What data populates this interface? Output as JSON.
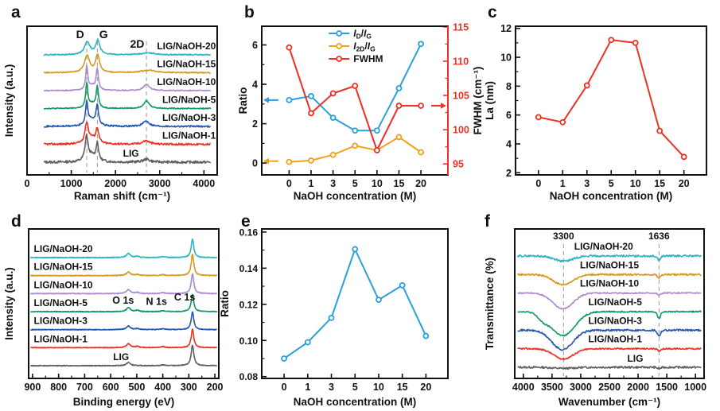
{
  "figure": {
    "background": "#ffffff",
    "accent_red": "#ee3124",
    "accent_blue": "#2b9fdc",
    "accent_orange": "#f0a11e"
  },
  "chart_data": [
    {
      "panel": "a",
      "type": "line",
      "subtype": "spectra",
      "xlabel": "Raman shift (cm⁻¹)",
      "ylabel": "Intensity (a.u.)",
      "xlim": [
        0,
        4300
      ],
      "xticks": [
        0,
        1000,
        2000,
        3000,
        4000
      ],
      "xtick_labels": [
        "0",
        "1000",
        "2000",
        "3000",
        "4000"
      ],
      "guide_lines": [
        1350,
        1590,
        2700
      ],
      "annotations": [
        {
          "text": "D",
          "x": 1200,
          "dy": 15,
          "fs": 14
        },
        {
          "text": "G",
          "x": 1730,
          "dy": 15,
          "fs": 14
        },
        {
          "text": "2D",
          "x": 2490,
          "dy": 27,
          "fs": 14
        }
      ],
      "curve_span": [
        380,
        4150
      ],
      "peak_shape": "lorentz",
      "samples": 300,
      "series": [
        {
          "name": "LIG",
          "color": "#5f5f5f",
          "noise": 0.07,
          "peaks": [
            [
              1345,
              40,
              1.35
            ],
            [
              1588,
              33,
              1.0
            ],
            [
              1455,
              110,
              0.33
            ],
            [
              2700,
              95,
              0.16
            ]
          ],
          "label": {
            "x": 2350,
            "anchor": "middle",
            "dy": 7
          }
        },
        {
          "name": "LIG/NaOH-1",
          "color": "#ee3124",
          "noise": 0.055,
          "peaks": [
            [
              1348,
              45,
              1.1
            ],
            [
              1588,
              38,
              0.8
            ],
            [
              1460,
              110,
              0.3
            ],
            [
              2690,
              95,
              0.2
            ]
          ],
          "label": {
            "x": 4270,
            "anchor": "end",
            "dy": 7
          }
        },
        {
          "name": "LIG/NaOH-3",
          "color": "#2257b2",
          "noise": 0.045,
          "peaks": [
            [
              1350,
              33,
              1.27
            ],
            [
              1588,
              33,
              1.08
            ],
            [
              1470,
              100,
              0.35
            ],
            [
              2695,
              85,
              0.3
            ]
          ],
          "label": {
            "x": 4270,
            "anchor": "end",
            "dy": 7
          }
        },
        {
          "name": "LIG/NaOH-5",
          "color": "#12995f",
          "noise": 0.03,
          "peaks": [
            [
              1350,
              28,
              1.38
            ],
            [
              1588,
              30,
              1.2
            ],
            [
              1470,
              90,
              0.25
            ],
            [
              2700,
              80,
              0.42
            ]
          ],
          "label": {
            "x": 4270,
            "anchor": "end",
            "dy": 7
          }
        },
        {
          "name": "LIG/NaOH-10",
          "color": "#a98bcb",
          "noise": 0.03,
          "peaks": [
            [
              1350,
              28,
              1.3
            ],
            [
              1588,
              30,
              1.16
            ],
            [
              1470,
              90,
              0.25
            ],
            [
              2700,
              80,
              0.36
            ]
          ],
          "label": {
            "x": 4270,
            "anchor": "end",
            "dy": 7
          }
        },
        {
          "name": "LIG/NaOH-15",
          "color": "#d7991d",
          "noise": 0.03,
          "peaks": [
            [
              1358,
              70,
              0.95
            ],
            [
              1595,
              52,
              1.0
            ],
            [
              2750,
              200,
              0.14
            ]
          ],
          "label": {
            "x": 4270,
            "anchor": "end",
            "dy": 7
          }
        },
        {
          "name": "LIG/NaOH-20",
          "color": "#2ab3c4",
          "noise": 0.03,
          "peaks": [
            [
              1362,
              75,
              0.7
            ],
            [
              1600,
              55,
              0.8
            ],
            [
              2750,
              200,
              0.1
            ]
          ],
          "label": {
            "x": 4270,
            "anchor": "end",
            "dy": 7
          }
        }
      ]
    },
    {
      "panel": "b",
      "type": "line",
      "subtype": "xy",
      "xlabel": "NaOH concentration (M)",
      "ylabel": "Ratio",
      "ylabel_right": "FWHM (cm⁻¹)",
      "categories": [
        "0",
        "1",
        "3",
        "5",
        "10",
        "15",
        "20"
      ],
      "ylim": [
        -0.6,
        6.95
      ],
      "yticks": [
        0,
        2,
        4,
        6
      ],
      "ytick_labels": [
        "0",
        "2",
        "4",
        "6"
      ],
      "ylim_right": [
        93.4,
        115.1
      ],
      "yticks_right": [
        95,
        100,
        105,
        110,
        115
      ],
      "ytick_labels_right": [
        "95",
        "100",
        "105",
        "110",
        "115"
      ],
      "right_axis_color": "#ee3124",
      "series": [
        {
          "name": "ID/IG",
          "axis": "left",
          "color": "#2b9fdc",
          "values": [
            3.2,
            3.4,
            2.3,
            1.65,
            1.65,
            3.8,
            6.05
          ]
        },
        {
          "name": "I2D/IG",
          "axis": "left",
          "color": "#f0a11e",
          "values": [
            0.06,
            0.13,
            0.42,
            0.88,
            0.65,
            1.32,
            0.55
          ]
        },
        {
          "name": "FWHM",
          "axis": "right",
          "color": "#ee3124",
          "values": [
            112,
            102.4,
            105.3,
            106.4,
            97,
            103.5,
            103.5
          ]
        }
      ],
      "legend": [
        {
          "color": "#2b9fdc",
          "plain": "ID/IG",
          "parts": [
            [
              "I",
              "i"
            ],
            [
              "D",
              "s"
            ],
            [
              "/",
              ""
            ],
            [
              "I",
              "i"
            ],
            [
              "G",
              "s"
            ]
          ]
        },
        {
          "color": "#f0a11e",
          "plain": "I2D/IG",
          "parts": [
            [
              "I",
              "i"
            ],
            [
              "2D",
              "s"
            ],
            [
              "/",
              ""
            ],
            [
              "I",
              "i"
            ],
            [
              "G",
              "s"
            ]
          ]
        },
        {
          "color": "#ee3124",
          "plain": "FWHM",
          "parts": [
            [
              "FWHM",
              ""
            ]
          ]
        }
      ],
      "arrows": [
        {
          "axis": "left",
          "y": 3.2,
          "dir": "left",
          "color": "#2b9fdc"
        },
        {
          "axis": "left",
          "y": 0.1,
          "dir": "left",
          "color": "#f0a11e"
        },
        {
          "axis": "right",
          "y": 103.5,
          "dir": "right",
          "color": "#ee3124"
        }
      ]
    },
    {
      "panel": "c",
      "type": "line",
      "subtype": "xy",
      "xlabel": "NaOH concentration (M)",
      "ylabel": "La (nm)",
      "categories": [
        "0",
        "1",
        "3",
        "5",
        "10",
        "15",
        "20"
      ],
      "ylim": [
        1.85,
        12.15
      ],
      "yticks": [
        2,
        4,
        6,
        8,
        10,
        12
      ],
      "ytick_labels": [
        "2",
        "4",
        "6",
        "8",
        "10",
        "12"
      ],
      "series": [
        {
          "name": "La",
          "axis": "left",
          "color": "#ee3124",
          "values": [
            5.85,
            5.5,
            8.05,
            11.2,
            11.0,
            4.9,
            3.1
          ]
        }
      ]
    },
    {
      "panel": "d",
      "type": "line",
      "subtype": "spectra",
      "xlabel": "Binding energy (eV)",
      "ylabel": "Intensity (a.u.)",
      "xlim": [
        915,
        185
      ],
      "xticks": [
        900,
        800,
        700,
        600,
        500,
        400,
        300,
        200
      ],
      "xtick_labels": [
        "900",
        "800",
        "700",
        "600",
        "500",
        "400",
        "300",
        "200"
      ],
      "annotations": [
        {
          "text": "O 1s",
          "x": 552,
          "band": 3.45,
          "fs": 12.5
        },
        {
          "text": "N 1s",
          "x": 424,
          "band": 3.38,
          "fs": 12.5
        },
        {
          "text": "C 1s",
          "x": 316,
          "band": 3.62,
          "fs": 12.5
        }
      ],
      "curve_span": [
        908,
        192
      ],
      "peak_shape": "lorentz",
      "samples": 560,
      "series": [
        {
          "name": "LIG",
          "color": "#5f5f5f",
          "noise": 0.02,
          "peaks": [
            [
              532,
              9,
              0.18
            ],
            [
              400,
              9,
              0.04
            ],
            [
              286,
              6,
              1.15
            ]
          ],
          "label": {
            "x": 560,
            "anchor": "middle",
            "dy": 7
          }
        },
        {
          "name": "LIG/NaOH-1",
          "color": "#ee3124",
          "noise": 0.02,
          "peaks": [
            [
              532,
              9,
              0.22
            ],
            [
              498,
              8,
              0.07
            ],
            [
              400,
              9,
              0.06
            ],
            [
              286,
              6,
              1.02
            ]
          ],
          "label": {
            "x": 895,
            "anchor": "start",
            "dy": 7
          }
        },
        {
          "name": "LIG/NaOH-3",
          "color": "#2257b2",
          "noise": 0.02,
          "peaks": [
            [
              532,
              9,
              0.2
            ],
            [
              498,
              8,
              0.06
            ],
            [
              400,
              9,
              0.05
            ],
            [
              286,
              6,
              0.98
            ]
          ],
          "label": {
            "x": 895,
            "anchor": "start",
            "dy": 7
          }
        },
        {
          "name": "LIG/NaOH-5",
          "color": "#12995f",
          "noise": 0.02,
          "peaks": [
            [
              532,
              9,
              0.22
            ],
            [
              498,
              8,
              0.07
            ],
            [
              400,
              9,
              0.05
            ],
            [
              286,
              6,
              0.95
            ]
          ],
          "label": {
            "x": 895,
            "anchor": "start",
            "dy": 7
          }
        },
        {
          "name": "LIG/NaOH-10",
          "color": "#a98bcb",
          "noise": 0.02,
          "peaks": [
            [
              532,
              9,
              0.22
            ],
            [
              498,
              8,
              0.06
            ],
            [
              400,
              9,
              0.05
            ],
            [
              286,
              6,
              1.1
            ]
          ],
          "label": {
            "x": 895,
            "anchor": "start",
            "dy": 7
          }
        },
        {
          "name": "LIG/NaOH-15",
          "color": "#d7991d",
          "noise": 0.02,
          "peaks": [
            [
              532,
              9,
              0.2
            ],
            [
              498,
              8,
              0.06
            ],
            [
              400,
              9,
              0.05
            ],
            [
              286,
              6,
              1.18
            ]
          ],
          "label": {
            "x": 895,
            "anchor": "start",
            "dy": 7
          }
        },
        {
          "name": "LIG/NaOH-20",
          "color": "#2ab3c4",
          "noise": 0.02,
          "peaks": [
            [
              532,
              9,
              0.22
            ],
            [
              498,
              8,
              0.07
            ],
            [
              400,
              9,
              0.05
            ],
            [
              286,
              6,
              1.02
            ]
          ],
          "label": {
            "x": 895,
            "anchor": "start",
            "dy": 7
          }
        }
      ]
    },
    {
      "panel": "e",
      "type": "line",
      "subtype": "xy",
      "xlabel": "NaOH concentration (M)",
      "ylabel": "Ratio",
      "categories": [
        "0",
        "1",
        "3",
        "5",
        "10",
        "15",
        "20"
      ],
      "ylim": [
        0.079,
        0.1617
      ],
      "yticks": [
        0.08,
        0.1,
        0.12,
        0.14,
        0.16
      ],
      "ytick_labels": [
        "0.08",
        "0.10",
        "0.12",
        "0.14",
        "0.16"
      ],
      "series": [
        {
          "name": "Ratio",
          "axis": "left",
          "color": "#2b9fdc",
          "values": [
            0.09,
            0.099,
            0.1125,
            0.1505,
            0.1225,
            0.1305,
            0.1025
          ]
        }
      ]
    },
    {
      "panel": "f",
      "type": "line",
      "subtype": "spectra",
      "xlabel": "Wavenumber (cm⁻¹)",
      "ylabel": "Transmittance (%)",
      "xlim": [
        4150,
        850
      ],
      "xticks": [
        4000,
        3500,
        3000,
        2500,
        2000,
        1500,
        1000
      ],
      "xtick_labels": [
        "4000",
        "3500",
        "3000",
        "2500",
        "2000",
        "1500",
        "1000"
      ],
      "guide_lines": [
        3300,
        1636
      ],
      "annotations": [
        {
          "text": "3300",
          "x": 3300,
          "dy": 13,
          "fs": 12
        },
        {
          "text": "1636",
          "x": 1636,
          "dy": 13,
          "fs": 12
        }
      ],
      "curve_span": [
        4100,
        900
      ],
      "peak_shape": "gauss",
      "samples": 300,
      "series": [
        {
          "name": "LIG",
          "color": "#5f5f5f",
          "noise": 0.05,
          "peaks": [
            [
              3300,
              250,
              -0.06
            ],
            [
              1636,
              40,
              -0.08
            ]
          ],
          "label": {
            "x": 2050,
            "anchor": "middle",
            "dy": 7
          }
        },
        {
          "name": "LIG/NaOH-1",
          "color": "#ee3124",
          "noise": 0.04,
          "peaks": [
            [
              3300,
              240,
              -0.55
            ],
            [
              1636,
              38,
              -0.12
            ]
          ],
          "label": {
            "x": 2400,
            "anchor": "middle",
            "dy": 8
          }
        },
        {
          "name": "LIG/NaOH-3",
          "color": "#2257b2",
          "noise": 0.05,
          "peaks": [
            [
              3320,
              260,
              -1.05
            ],
            [
              1636,
              38,
              -0.3
            ]
          ],
          "label": {
            "x": 2400,
            "anchor": "middle",
            "dy": 8
          }
        },
        {
          "name": "LIG/NaOH-5",
          "color": "#12995f",
          "noise": 0.035,
          "peaks": [
            [
              3310,
              290,
              -1.3
            ],
            [
              3660,
              130,
              -0.3
            ],
            [
              1636,
              38,
              -0.38
            ]
          ],
          "label": {
            "x": 2400,
            "anchor": "middle",
            "dy": 8
          }
        },
        {
          "name": "LIG/NaOH-10",
          "color": "#a98bcb",
          "noise": 0.035,
          "peaks": [
            [
              3310,
              250,
              -0.85
            ],
            [
              1636,
              38,
              -0.12
            ]
          ],
          "label": {
            "x": 2500,
            "anchor": "middle",
            "dy": 8
          }
        },
        {
          "name": "LIG/NaOH-15",
          "color": "#d7991d",
          "noise": 0.045,
          "peaks": [
            [
              3310,
              240,
              -0.55
            ],
            [
              1636,
              38,
              -0.18
            ]
          ],
          "label": {
            "x": 2500,
            "anchor": "middle",
            "dy": 8
          }
        },
        {
          "name": "LIG/NaOH-20",
          "color": "#2ab3c4",
          "noise": 0.05,
          "peaks": [
            [
              3300,
              220,
              -0.28
            ],
            [
              1636,
              38,
              -0.22
            ]
          ],
          "label": {
            "x": 2600,
            "anchor": "middle",
            "dy": 8
          }
        }
      ]
    }
  ]
}
